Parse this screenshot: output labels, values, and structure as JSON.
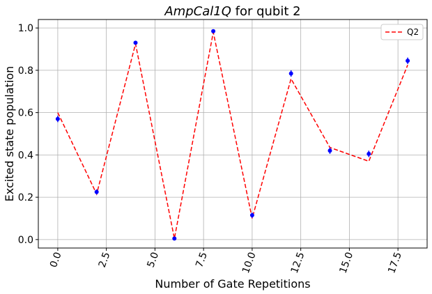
{
  "chart_data": {
    "type": "line",
    "title_italic": "AmpCal1Q",
    "title_rest": " for qubit 2",
    "xlabel": "Number of Gate Repetitions",
    "ylabel": "Excited state population",
    "xlim": [
      -1,
      19
    ],
    "ylim": [
      -0.04,
      1.04
    ],
    "x_ticks": [
      0.0,
      2.5,
      5.0,
      7.5,
      10.0,
      12.5,
      15.0,
      17.5
    ],
    "x_tick_labels": [
      "0.0",
      "2.5",
      "5.0",
      "7.5",
      "10.0",
      "12.5",
      "15.0",
      "17.5"
    ],
    "y_ticks": [
      0.0,
      0.2,
      0.4,
      0.6,
      0.8,
      1.0
    ],
    "y_tick_labels": [
      "0.0",
      "0.2",
      "0.4",
      "0.6",
      "0.8",
      "1.0"
    ],
    "grid": true,
    "legend_position": "top-right",
    "colors": {
      "fit": "#ff0000",
      "points": "#0000ff",
      "grid": "#b0b0b0"
    },
    "measured": {
      "x": [
        0,
        2,
        4,
        6,
        8,
        10,
        12,
        14,
        16,
        18
      ],
      "y": [
        0.57,
        0.225,
        0.93,
        0.005,
        0.985,
        0.115,
        0.785,
        0.42,
        0.405,
        0.845
      ],
      "err": [
        0.015,
        0.012,
        0.008,
        0.005,
        0.008,
        0.012,
        0.015,
        0.015,
        0.015,
        0.015
      ]
    },
    "series": [
      {
        "name": "Q2",
        "x": [
          0,
          2,
          4,
          6,
          8,
          10,
          12,
          14,
          16,
          18
        ],
        "y": [
          0.6,
          0.215,
          0.925,
          0.005,
          0.98,
          0.1,
          0.76,
          0.435,
          0.37,
          0.825
        ]
      }
    ]
  }
}
